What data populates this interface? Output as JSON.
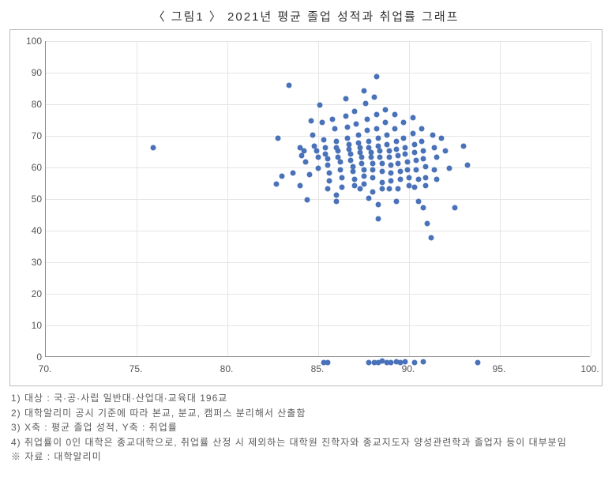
{
  "title": "〈 그림1 〉  2021년  평균  졸업  성적과  취업률  그래프",
  "chart": {
    "type": "scatter",
    "xlim": [
      70,
      100
    ],
    "ylim": [
      0,
      100
    ],
    "xtick_step": 5,
    "ytick_step": 10,
    "xticks": [
      "70.",
      "75.",
      "80.",
      "85.",
      "90.",
      "95.",
      "100."
    ],
    "yticks": [
      "0",
      "10",
      "20",
      "30",
      "40",
      "50",
      "60",
      "70",
      "80",
      "90",
      "100"
    ],
    "background_color": "#ffffff",
    "grid_color": "#e5e5e5",
    "axis_color": "#8a8a8a",
    "tick_label_color": "#555555",
    "tick_fontsize": 12,
    "point_color": "#4a72b8",
    "point_radius": 3.5,
    "points": [
      [
        75.9,
        68
      ],
      [
        82.8,
        71
      ],
      [
        83.4,
        87.8
      ],
      [
        83.6,
        60
      ],
      [
        83.0,
        59
      ],
      [
        82.7,
        56.5
      ],
      [
        84.0,
        68
      ],
      [
        84.2,
        67
      ],
      [
        84.1,
        65.5
      ],
      [
        84.3,
        63.5
      ],
      [
        84.5,
        59.5
      ],
      [
        84.0,
        56
      ],
      [
        84.4,
        51.5
      ],
      [
        84.6,
        76.5
      ],
      [
        84.7,
        72
      ],
      [
        84.8,
        68.5
      ],
      [
        84.9,
        67
      ],
      [
        85.0,
        65
      ],
      [
        85.0,
        61.5
      ],
      [
        85.1,
        81.5
      ],
      [
        85.2,
        76
      ],
      [
        85.3,
        70.5
      ],
      [
        85.4,
        68
      ],
      [
        85.4,
        66
      ],
      [
        85.5,
        64.5
      ],
      [
        85.5,
        62.5
      ],
      [
        85.6,
        60
      ],
      [
        85.6,
        57.5
      ],
      [
        85.5,
        55
      ],
      [
        85.8,
        77
      ],
      [
        85.9,
        74
      ],
      [
        86.0,
        70
      ],
      [
        86.0,
        68
      ],
      [
        86.1,
        67
      ],
      [
        86.1,
        65
      ],
      [
        86.2,
        63.5
      ],
      [
        86.2,
        61
      ],
      [
        86.3,
        58.5
      ],
      [
        86.3,
        55.5
      ],
      [
        86.0,
        53
      ],
      [
        86.0,
        51
      ],
      [
        86.5,
        83.5
      ],
      [
        86.5,
        78
      ],
      [
        86.6,
        74.5
      ],
      [
        86.6,
        71
      ],
      [
        86.7,
        69
      ],
      [
        86.7,
        67.5
      ],
      [
        86.8,
        66
      ],
      [
        86.8,
        64
      ],
      [
        86.9,
        62
      ],
      [
        86.9,
        60.5
      ],
      [
        87.0,
        58
      ],
      [
        87.0,
        56
      ],
      [
        87.0,
        79.5
      ],
      [
        87.5,
        86
      ],
      [
        87.1,
        75.5
      ],
      [
        87.2,
        72
      ],
      [
        87.2,
        69.5
      ],
      [
        87.3,
        68
      ],
      [
        87.3,
        66.5
      ],
      [
        87.4,
        65
      ],
      [
        87.4,
        63
      ],
      [
        87.5,
        61
      ],
      [
        87.5,
        59
      ],
      [
        87.5,
        56.5
      ],
      [
        87.3,
        55
      ],
      [
        87.6,
        82
      ],
      [
        87.7,
        77
      ],
      [
        87.7,
        73.5
      ],
      [
        87.8,
        70
      ],
      [
        87.8,
        68
      ],
      [
        87.9,
        66.5
      ],
      [
        87.9,
        65
      ],
      [
        88.0,
        63
      ],
      [
        88.0,
        61
      ],
      [
        88.0,
        58.5
      ],
      [
        88.0,
        54
      ],
      [
        87.8,
        52
      ],
      [
        88.2,
        90.5
      ],
      [
        88.1,
        84
      ],
      [
        88.2,
        78.5
      ],
      [
        88.2,
        74
      ],
      [
        88.3,
        71
      ],
      [
        88.3,
        68.5
      ],
      [
        88.4,
        67
      ],
      [
        88.4,
        65
      ],
      [
        88.5,
        63
      ],
      [
        88.5,
        60.5
      ],
      [
        88.5,
        57
      ],
      [
        88.5,
        55
      ],
      [
        88.3,
        50
      ],
      [
        88.3,
        45.5
      ],
      [
        88.7,
        80
      ],
      [
        88.7,
        76
      ],
      [
        88.8,
        72
      ],
      [
        88.8,
        69
      ],
      [
        88.9,
        67
      ],
      [
        88.9,
        65
      ],
      [
        89.0,
        62.5
      ],
      [
        89.0,
        60
      ],
      [
        89.0,
        57.5
      ],
      [
        88.9,
        55
      ],
      [
        89.2,
        78.5
      ],
      [
        89.2,
        74
      ],
      [
        89.3,
        70
      ],
      [
        89.3,
        67.5
      ],
      [
        89.4,
        65.5
      ],
      [
        89.4,
        63
      ],
      [
        89.5,
        60.5
      ],
      [
        89.5,
        58
      ],
      [
        89.4,
        55
      ],
      [
        89.3,
        51
      ],
      [
        89.7,
        76
      ],
      [
        89.7,
        71
      ],
      [
        89.8,
        68
      ],
      [
        89.8,
        66
      ],
      [
        89.9,
        63.5
      ],
      [
        89.9,
        61
      ],
      [
        90.0,
        58.5
      ],
      [
        90.0,
        56
      ],
      [
        90.2,
        77.5
      ],
      [
        90.2,
        72.5
      ],
      [
        90.3,
        69
      ],
      [
        90.3,
        66.5
      ],
      [
        90.4,
        64
      ],
      [
        90.4,
        61
      ],
      [
        90.5,
        58
      ],
      [
        90.3,
        55.5
      ],
      [
        90.7,
        74
      ],
      [
        90.7,
        70
      ],
      [
        90.8,
        67
      ],
      [
        90.8,
        64.5
      ],
      [
        90.9,
        62
      ],
      [
        90.9,
        58.5
      ],
      [
        90.9,
        56
      ],
      [
        90.5,
        51
      ],
      [
        90.8,
        49
      ],
      [
        91.0,
        44
      ],
      [
        91.2,
        39.5
      ],
      [
        91.3,
        72
      ],
      [
        91.4,
        68
      ],
      [
        91.5,
        65
      ],
      [
        91.4,
        61
      ],
      [
        91.5,
        58
      ],
      [
        91.8,
        71
      ],
      [
        92.0,
        67
      ],
      [
        92.2,
        61.5
      ],
      [
        92.5,
        49
      ],
      [
        93.0,
        68.5
      ],
      [
        93.2,
        62.5
      ],
      [
        85.3,
        0
      ],
      [
        85.5,
        0
      ],
      [
        87.8,
        0
      ],
      [
        88.1,
        0
      ],
      [
        88.3,
        0
      ],
      [
        88.5,
        0.5
      ],
      [
        88.8,
        0
      ],
      [
        89.0,
        0
      ],
      [
        89.3,
        0.3
      ],
      [
        89.5,
        0
      ],
      [
        89.8,
        0.2
      ],
      [
        90.3,
        0
      ],
      [
        90.8,
        0.3
      ],
      [
        93.8,
        0
      ]
    ]
  },
  "footnotes": [
    "1) 대상 : 국·공·사립 일반대·산업대·교육대  196교",
    "2) 대학알리미 공시 기준에 따라 본교, 분교, 캠퍼스 분리해서 산출함",
    "3) X축 : 평균 졸업 성적, Y축 : 취업률",
    "4) 취업률이 0인 대학은 종교대학으로, 취업률 산정 시 제외하는 대학원 진학자와 종교지도자 양성관련학과 졸업자 등이 대부분임",
    "※ 자료 : 대학알리미"
  ]
}
